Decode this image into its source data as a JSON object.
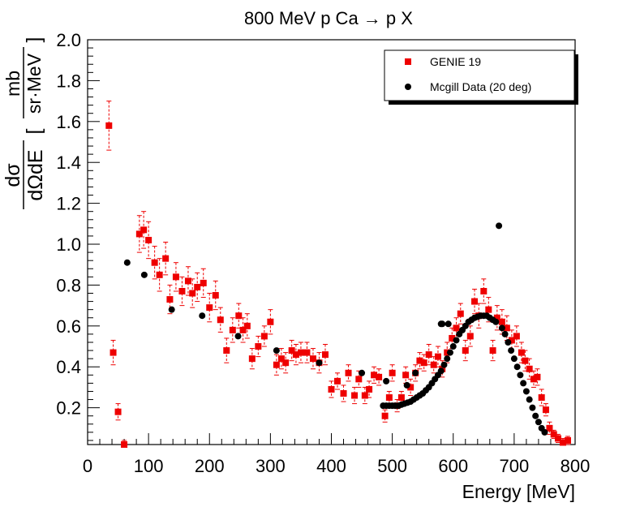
{
  "chart_data": {
    "type": "scatter",
    "title": "800 MeV p Ca → p X",
    "xlabel": "Energy [MeV]",
    "ylabel": {
      "numerator": "dσ",
      "denominator": "dΩdE",
      "unit_numerator": "mb",
      "unit_denominator": "sr·MeV"
    },
    "xlim": [
      0,
      800
    ],
    "ylim": [
      0.02,
      2.0
    ],
    "x_ticks": [
      0,
      100,
      200,
      300,
      400,
      500,
      600,
      700,
      800
    ],
    "x_tick_labels": [
      "0",
      "100",
      "200",
      "300",
      "400",
      "500",
      "600",
      "700",
      "800"
    ],
    "y_ticks": [
      0.2,
      0.4,
      0.6,
      0.8,
      1.0,
      1.2,
      1.4,
      1.6,
      1.8,
      2.0
    ],
    "y_tick_labels": [
      "0.2",
      "0.4",
      "0.6",
      "0.8",
      "1.0",
      "1.2",
      "1.4",
      "1.6",
      "1.8",
      "2.0"
    ],
    "legend_position": "top-right",
    "colors": {
      "genie": "#ee0000",
      "data": "#000000"
    },
    "series": [
      {
        "name": "GENIE 19",
        "marker": "square",
        "color": "#ee0000",
        "points": [
          [
            35,
            1.58,
            0.12
          ],
          [
            42,
            0.47,
            0.06
          ],
          [
            50,
            0.18,
            0.04
          ],
          [
            60,
            0.02,
            0.02
          ],
          [
            85,
            1.05,
            0.09
          ],
          [
            92,
            1.07,
            0.09
          ],
          [
            100,
            1.02,
            0.09
          ],
          [
            110,
            0.91,
            0.08
          ],
          [
            118,
            0.85,
            0.08
          ],
          [
            128,
            0.93,
            0.08
          ],
          [
            135,
            0.73,
            0.07
          ],
          [
            145,
            0.84,
            0.07
          ],
          [
            155,
            0.77,
            0.07
          ],
          [
            165,
            0.82,
            0.07
          ],
          [
            172,
            0.76,
            0.07
          ],
          [
            180,
            0.79,
            0.07
          ],
          [
            190,
            0.81,
            0.07
          ],
          [
            200,
            0.69,
            0.07
          ],
          [
            210,
            0.75,
            0.07
          ],
          [
            218,
            0.63,
            0.06
          ],
          [
            228,
            0.48,
            0.06
          ],
          [
            238,
            0.58,
            0.06
          ],
          [
            248,
            0.65,
            0.06
          ],
          [
            255,
            0.58,
            0.06
          ],
          [
            262,
            0.6,
            0.06
          ],
          [
            270,
            0.44,
            0.05
          ],
          [
            280,
            0.5,
            0.05
          ],
          [
            290,
            0.55,
            0.05
          ],
          [
            300,
            0.62,
            0.06
          ],
          [
            310,
            0.41,
            0.05
          ],
          [
            318,
            0.44,
            0.05
          ],
          [
            325,
            0.42,
            0.05
          ],
          [
            335,
            0.48,
            0.05
          ],
          [
            342,
            0.46,
            0.05
          ],
          [
            350,
            0.47,
            0.05
          ],
          [
            360,
            0.47,
            0.05
          ],
          [
            370,
            0.44,
            0.05
          ],
          [
            380,
            0.42,
            0.05
          ],
          [
            390,
            0.46,
            0.05
          ],
          [
            400,
            0.29,
            0.04
          ],
          [
            410,
            0.33,
            0.04
          ],
          [
            420,
            0.27,
            0.04
          ],
          [
            428,
            0.37,
            0.04
          ],
          [
            438,
            0.26,
            0.04
          ],
          [
            445,
            0.34,
            0.04
          ],
          [
            455,
            0.26,
            0.04
          ],
          [
            462,
            0.29,
            0.04
          ],
          [
            470,
            0.36,
            0.04
          ],
          [
            478,
            0.35,
            0.04
          ],
          [
            488,
            0.16,
            0.03
          ],
          [
            495,
            0.25,
            0.03
          ],
          [
            500,
            0.37,
            0.04
          ],
          [
            508,
            0.21,
            0.03
          ],
          [
            515,
            0.25,
            0.03
          ],
          [
            522,
            0.36,
            0.04
          ],
          [
            530,
            0.3,
            0.04
          ],
          [
            538,
            0.37,
            0.04
          ],
          [
            545,
            0.43,
            0.04
          ],
          [
            552,
            0.42,
            0.04
          ],
          [
            560,
            0.46,
            0.05
          ],
          [
            568,
            0.41,
            0.04
          ],
          [
            575,
            0.45,
            0.05
          ],
          [
            582,
            0.39,
            0.04
          ],
          [
            590,
            0.47,
            0.05
          ],
          [
            598,
            0.54,
            0.05
          ],
          [
            605,
            0.59,
            0.05
          ],
          [
            612,
            0.66,
            0.05
          ],
          [
            620,
            0.48,
            0.05
          ],
          [
            628,
            0.55,
            0.05
          ],
          [
            635,
            0.72,
            0.06
          ],
          [
            642,
            0.65,
            0.06
          ],
          [
            650,
            0.77,
            0.06
          ],
          [
            658,
            0.68,
            0.06
          ],
          [
            665,
            0.48,
            0.05
          ],
          [
            672,
            0.64,
            0.06
          ],
          [
            680,
            0.62,
            0.06
          ],
          [
            688,
            0.59,
            0.06
          ],
          [
            696,
            0.53,
            0.05
          ],
          [
            704,
            0.55,
            0.05
          ],
          [
            712,
            0.47,
            0.05
          ],
          [
            718,
            0.43,
            0.05
          ],
          [
            725,
            0.39,
            0.05
          ],
          [
            732,
            0.34,
            0.04
          ],
          [
            738,
            0.35,
            0.04
          ],
          [
            745,
            0.25,
            0.04
          ],
          [
            752,
            0.19,
            0.03
          ],
          [
            758,
            0.1,
            0.03
          ],
          [
            765,
            0.07,
            0.02
          ],
          [
            772,
            0.05,
            0.02
          ],
          [
            780,
            0.03,
            0.02
          ],
          [
            788,
            0.04,
            0.02
          ]
        ]
      },
      {
        "name": "Mcgill Data (20 deg)",
        "marker": "circle",
        "color": "#000000",
        "points": [
          [
            65,
            0.91
          ],
          [
            93,
            0.85
          ],
          [
            138,
            0.68
          ],
          [
            188,
            0.65
          ],
          [
            247,
            0.55
          ],
          [
            310,
            0.48
          ],
          [
            380,
            0.42
          ],
          [
            450,
            0.37
          ],
          [
            485,
            0.21
          ],
          [
            490,
            0.21
          ],
          [
            495,
            0.21
          ],
          [
            500,
            0.21
          ],
          [
            505,
            0.21
          ],
          [
            510,
            0.21
          ],
          [
            515,
            0.215
          ],
          [
            520,
            0.22
          ],
          [
            525,
            0.225
          ],
          [
            530,
            0.23
          ],
          [
            535,
            0.24
          ],
          [
            540,
            0.25
          ],
          [
            545,
            0.26
          ],
          [
            550,
            0.27
          ],
          [
            555,
            0.285
          ],
          [
            560,
            0.3
          ],
          [
            565,
            0.32
          ],
          [
            570,
            0.34
          ],
          [
            575,
            0.36
          ],
          [
            580,
            0.38
          ],
          [
            585,
            0.41
          ],
          [
            590,
            0.44
          ],
          [
            595,
            0.47
          ],
          [
            600,
            0.5
          ],
          [
            605,
            0.53
          ],
          [
            610,
            0.56
          ],
          [
            615,
            0.58
          ],
          [
            620,
            0.6
          ],
          [
            625,
            0.62
          ],
          [
            630,
            0.63
          ],
          [
            635,
            0.64
          ],
          [
            640,
            0.645
          ],
          [
            645,
            0.65
          ],
          [
            650,
            0.65
          ],
          [
            655,
            0.65
          ],
          [
            660,
            0.64
          ],
          [
            665,
            0.63
          ],
          [
            670,
            0.62
          ],
          [
            675,
            1.09
          ],
          [
            680,
            0.59
          ],
          [
            685,
            0.56
          ],
          [
            690,
            0.52
          ],
          [
            695,
            0.48
          ],
          [
            700,
            0.44
          ],
          [
            705,
            0.4
          ],
          [
            710,
            0.36
          ],
          [
            715,
            0.32
          ],
          [
            720,
            0.28
          ],
          [
            725,
            0.24
          ],
          [
            730,
            0.2
          ],
          [
            735,
            0.16
          ],
          [
            740,
            0.13
          ],
          [
            745,
            0.1
          ],
          [
            750,
            0.08
          ],
          [
            592,
            0.61
          ],
          [
            580,
            0.61
          ],
          [
            582,
            0.61
          ],
          [
            538,
            0.37
          ],
          [
            524,
            0.31
          ],
          [
            490,
            0.33
          ]
        ]
      }
    ]
  }
}
